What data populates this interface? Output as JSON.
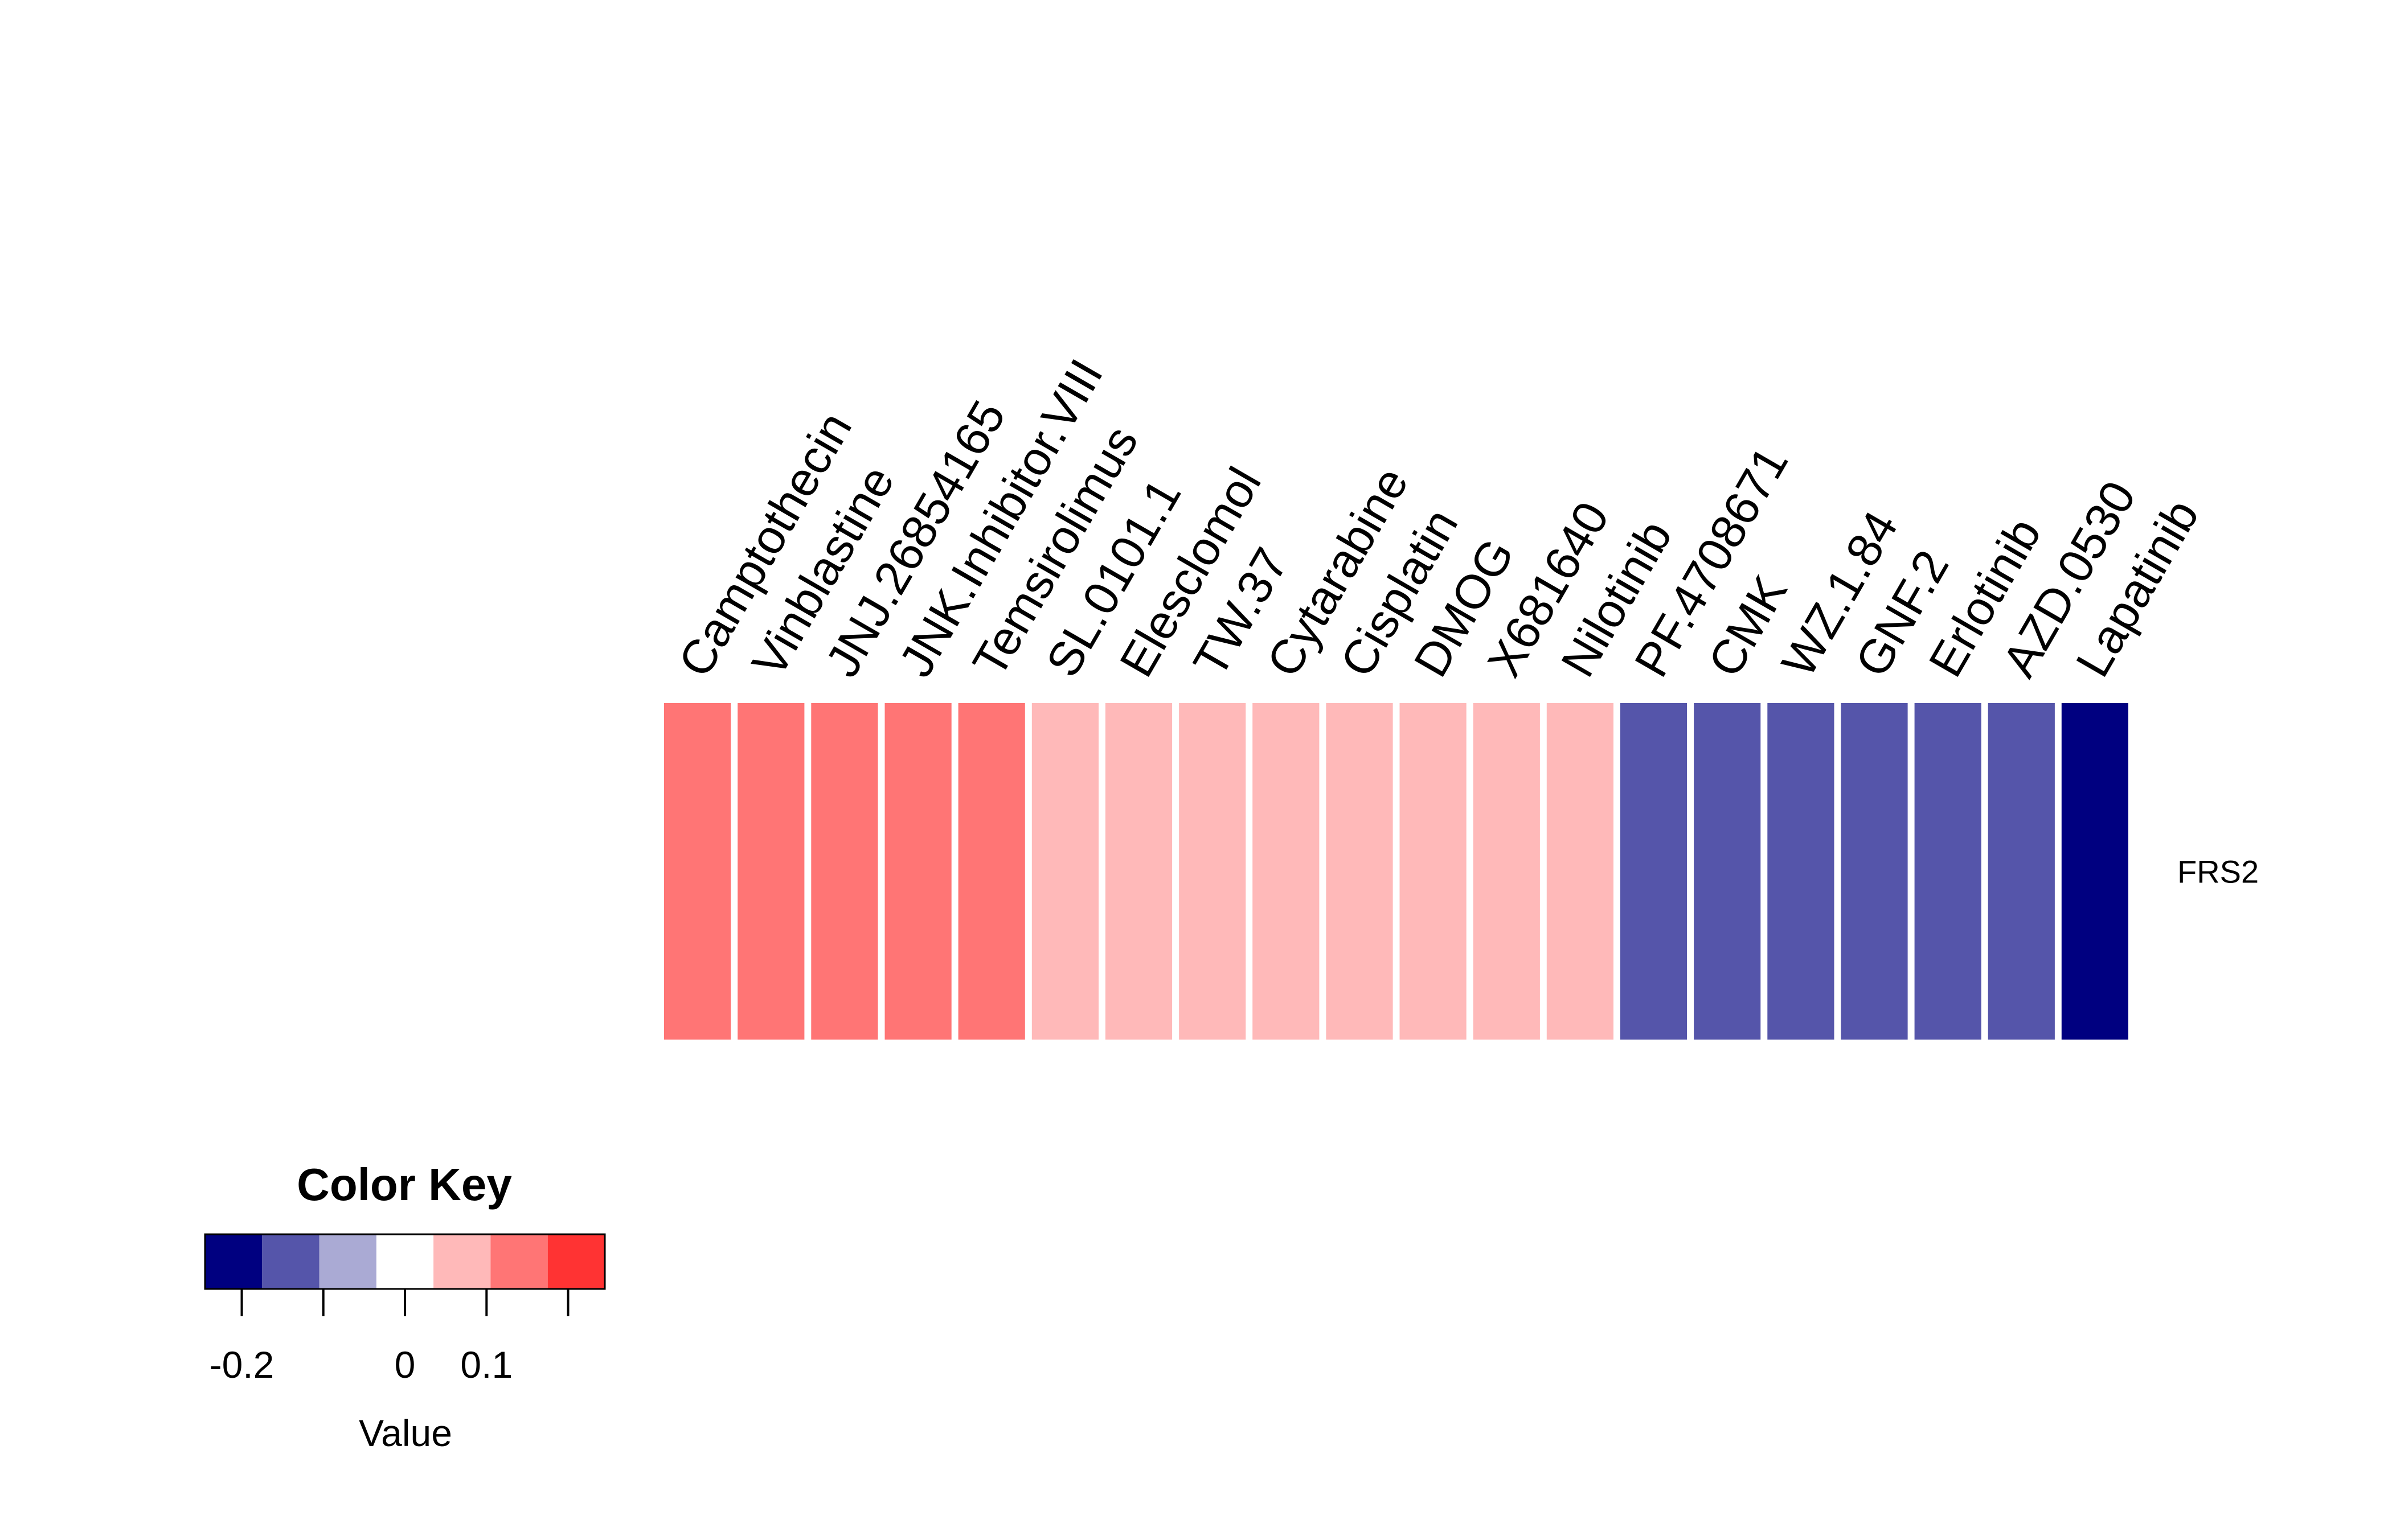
{
  "chart_data": {
    "type": "heatmap",
    "row_labels": [
      "FRS2"
    ],
    "columns": [
      "Camptothecin",
      "Vinblastine",
      "JNJ.26854165",
      "JNK.Inhibitor.VIII",
      "Temsirolimus",
      "SL.0101.1",
      "Elesclomol",
      "TW.37",
      "Cytarabine",
      "Cisplatin",
      "DMOG",
      "X681640",
      "Nilotinib",
      "PF.4708671",
      "CMK",
      "WZ.1.84",
      "GNF.2",
      "Erlotinib",
      "AZD.0530",
      "Lapatinib"
    ],
    "values": [
      [
        0.12,
        0.12,
        0.12,
        0.12,
        0.12,
        0.06,
        0.06,
        0.06,
        0.06,
        0.06,
        0.06,
        0.06,
        0.06,
        -0.15,
        -0.15,
        -0.15,
        -0.15,
        -0.15,
        -0.15,
        -0.22
      ]
    ],
    "color_key": {
      "title": "Color Key",
      "xlabel": "Value",
      "ticks": [
        -0.2,
        -0.1,
        0,
        0.1,
        0.2
      ],
      "tick_labels": [
        "-0.2",
        "",
        "0",
        "0.1",
        ""
      ],
      "breaks": [
        -0.245,
        -0.175,
        -0.105,
        -0.035,
        0.035,
        0.105,
        0.175,
        0.245
      ],
      "colors": [
        "#000080",
        "#5555aa",
        "#aaaad4",
        "#ffffff",
        "#ffb9b9",
        "#ff7575",
        "#ff3333"
      ]
    }
  }
}
